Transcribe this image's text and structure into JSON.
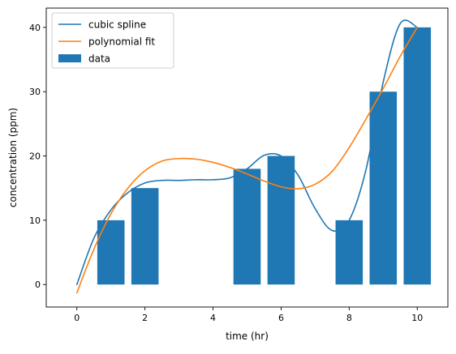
{
  "chart_data": {
    "type": "bar",
    "title": "",
    "xlabel": "time (hr)",
    "ylabel": "concentration (ppm)",
    "xlim": [
      -0.9,
      10.9
    ],
    "ylim": [
      -3.5,
      43
    ],
    "xticks": [
      0,
      2,
      4,
      6,
      8,
      10
    ],
    "yticks": [
      0,
      10,
      20,
      30,
      40
    ],
    "grid": false,
    "legend_position": "top-left",
    "bar_width": 0.8,
    "bars": {
      "name": "data",
      "color": "#1f77b4",
      "x": [
        1,
        2,
        5,
        6,
        8,
        9,
        10
      ],
      "values": [
        10,
        15,
        18,
        20,
        10,
        30,
        40
      ]
    },
    "series": [
      {
        "name": "cubic spline",
        "type": "line",
        "color": "#1f77b4",
        "x": [
          0,
          0.5,
          1,
          1.5,
          2,
          2.5,
          3,
          3.5,
          4,
          4.5,
          5,
          5.5,
          6,
          6.5,
          7,
          7.5,
          8,
          8.5,
          9,
          9.5,
          10
        ],
        "y": [
          0,
          7.2,
          11.6,
          14.3,
          15.8,
          16.2,
          16.2,
          16.3,
          16.3,
          16.6,
          18.0,
          20.1,
          20.0,
          17.0,
          11.8,
          8.4,
          10.0,
          18.0,
          31.5,
          40.6,
          40.0
        ]
      },
      {
        "name": "polynomial fit",
        "type": "line",
        "color": "#ff7f0e",
        "x": [
          0,
          0.5,
          1,
          1.5,
          2,
          2.5,
          3,
          3.5,
          4,
          4.5,
          5,
          5.5,
          6,
          6.5,
          7,
          7.5,
          8,
          8.5,
          9,
          9.5,
          10
        ],
        "y": [
          -1.3,
          5.5,
          11.0,
          15.0,
          17.7,
          19.2,
          19.6,
          19.5,
          19.0,
          18.2,
          17.2,
          16.1,
          15.2,
          14.9,
          15.6,
          17.6,
          21.3,
          25.8,
          30.5,
          35.5,
          40.0
        ]
      }
    ]
  }
}
